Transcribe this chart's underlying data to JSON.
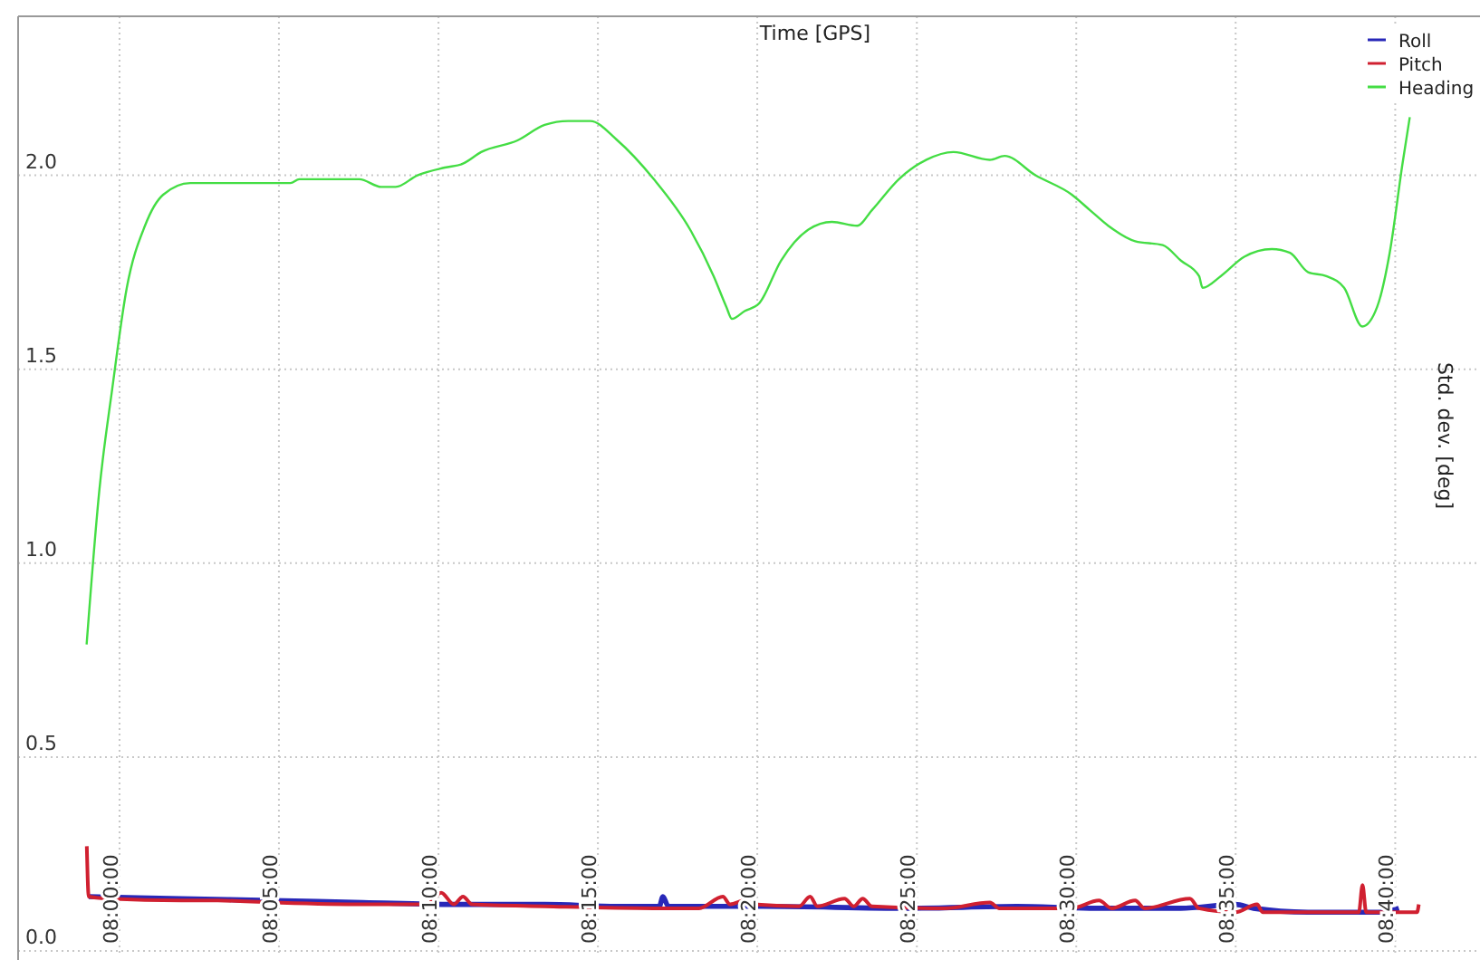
{
  "chart_data": {
    "type": "line",
    "xlabel": "Time [GPS]",
    "ylabel": "Std. dev. [deg]",
    "xlim": [
      7.947,
      8.711
    ],
    "ylim": [
      0,
      2.41
    ],
    "xticks": [
      {
        "value": 8,
        "label": "08:00:00"
      },
      {
        "value": 8.0833,
        "label": "08:05:00"
      },
      {
        "value": 8.1667,
        "label": "08:10:00"
      },
      {
        "value": 8.25,
        "label": "08:15:00"
      },
      {
        "value": 8.3333,
        "label": "08:20:00"
      },
      {
        "value": 8.4167,
        "label": "08:25:00"
      },
      {
        "value": 8.5,
        "label": "08:30:00"
      },
      {
        "value": 8.5833,
        "label": "08:35:00"
      },
      {
        "value": 8.6667,
        "label": "08:40:00"
      }
    ],
    "yticks": [
      {
        "value": 0,
        "label": "0.0"
      },
      {
        "value": 0.5,
        "label": "0.5"
      },
      {
        "value": 1,
        "label": "1.0"
      },
      {
        "value": 1.5,
        "label": "1.5"
      },
      {
        "value": 2,
        "label": "2.0"
      }
    ],
    "grid": true,
    "legend": "top right",
    "line_style": "solid",
    "marker": "none",
    "series": [
      {
        "name": "Roll",
        "color": "#2828b8",
        "x": [
          7.9839,
          8.0323,
          8.0798,
          8.1273,
          8.1747,
          8.2222,
          8.2602,
          8.2821,
          8.284,
          8.2868,
          8.3362,
          8.4122,
          8.4691,
          8.5071,
          8.5546,
          8.5831,
          8.5926,
          8.6211,
          8.6591,
          8.6686
        ],
        "values": [
          0.14,
          0.135,
          0.13,
          0.125,
          0.12,
          0.12,
          0.115,
          0.115,
          0.14,
          0.115,
          0.115,
          0.11,
          0.115,
          0.11,
          0.11,
          0.12,
          0.11,
          0.1,
          0.1,
          0.11
        ]
      },
      {
        "name": "Pitch",
        "color": "#d02030",
        "x": [
          7.9829,
          7.9839,
          7.9943,
          8.0323,
          8.0513,
          8.0798,
          8.1273,
          8.1605,
          8.1681,
          8.1747,
          8.1795,
          8.1842,
          8.2222,
          8.2792,
          8.3029,
          8.3153,
          8.3191,
          8.3267,
          8.3314,
          8.3552,
          8.3609,
          8.3647,
          8.3789,
          8.3837,
          8.3884,
          8.3932,
          8.4311,
          8.4549,
          8.4596,
          8.4834,
          8.4976,
          8.5119,
          8.5185,
          8.5308,
          8.5356,
          8.5594,
          8.5641,
          8.5831,
          8.5945,
          8.5974,
          8.6211,
          8.6477,
          8.6496,
          8.6515,
          8.6781,
          8.679
        ],
        "values": [
          0.27,
          0.14,
          0.135,
          0.13,
          0.13,
          0.125,
          0.12,
          0.12,
          0.15,
          0.12,
          0.14,
          0.12,
          0.115,
          0.11,
          0.11,
          0.14,
          0.12,
          0.13,
          0.12,
          0.115,
          0.14,
          0.115,
          0.135,
          0.115,
          0.135,
          0.115,
          0.11,
          0.125,
          0.11,
          0.11,
          0.11,
          0.13,
          0.11,
          0.13,
          0.11,
          0.135,
          0.11,
          0.1,
          0.12,
          0.1,
          0.1,
          0.1,
          0.17,
          0.1,
          0.1,
          0.12
        ]
      },
      {
        "name": "Heading",
        "color": "#44dd44",
        "x": [
          7.9828,
          7.9895,
          7.9962,
          8.0038,
          8.0133,
          8.0228,
          8.037,
          8.056,
          8.0893,
          8.094,
          8.1253,
          8.1368,
          8.1443,
          8.1557,
          8.17,
          8.1795,
          8.189,
          8.208,
          8.2222,
          8.2345,
          8.246,
          8.2602,
          8.2792,
          8.2982,
          8.3105,
          8.3172,
          8.32,
          8.3267,
          8.3343,
          8.3457,
          8.36,
          8.3723,
          8.3855,
          8.3932,
          8.4073,
          8.4217,
          8.4358,
          8.4548,
          8.4625,
          8.4787,
          8.4977,
          8.5072,
          8.5167,
          8.5308,
          8.5452,
          8.5547,
          8.5642,
          8.566,
          8.5755,
          8.5878,
          8.6022,
          8.6117,
          8.6212,
          8.6307,
          8.64,
          8.6495,
          8.6572,
          8.6638,
          8.6705,
          8.6743
        ],
        "values": [
          0.79,
          1.19,
          1.45,
          1.71,
          1.87,
          1.95,
          1.98,
          1.98,
          1.98,
          1.99,
          1.99,
          1.97,
          1.97,
          2.0,
          2.02,
          2.03,
          2.06,
          2.09,
          2.13,
          2.14,
          2.14,
          2.09,
          1.99,
          1.86,
          1.74,
          1.66,
          1.63,
          1.65,
          1.67,
          1.78,
          1.86,
          1.88,
          1.87,
          1.91,
          1.99,
          2.04,
          2.06,
          2.04,
          2.05,
          2.0,
          1.95,
          1.91,
          1.87,
          1.83,
          1.82,
          1.78,
          1.74,
          1.71,
          1.74,
          1.79,
          1.81,
          1.8,
          1.75,
          1.74,
          1.71,
          1.61,
          1.66,
          1.8,
          2.03,
          2.15
        ]
      }
    ]
  }
}
